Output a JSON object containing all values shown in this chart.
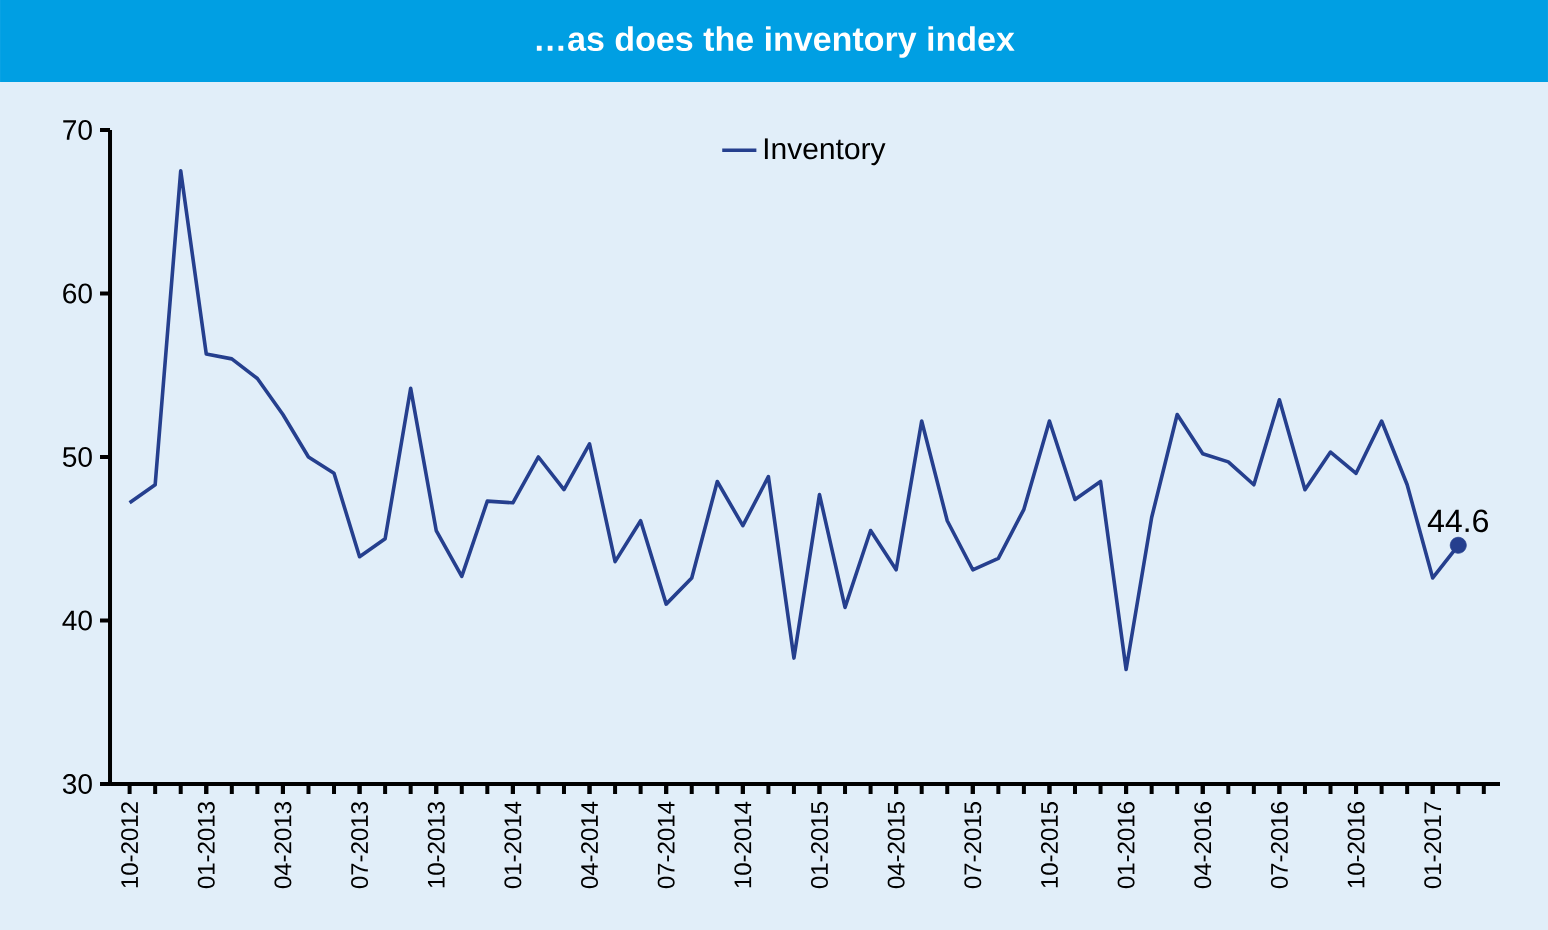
{
  "chart_data": {
    "type": "line",
    "title": "…as does the inventory index",
    "x": [
      "2012-10",
      "2012-11",
      "2012-12",
      "2013-01",
      "2013-02",
      "2013-03",
      "2013-04",
      "2013-05",
      "2013-06",
      "2013-07",
      "2013-08",
      "2013-09",
      "2013-10",
      "2013-11",
      "2013-12",
      "2014-01",
      "2014-02",
      "2014-03",
      "2014-04",
      "2014-05",
      "2014-06",
      "2014-07",
      "2014-08",
      "2014-09",
      "2014-10",
      "2014-11",
      "2014-12",
      "2015-01",
      "2015-02",
      "2015-03",
      "2015-04",
      "2015-05",
      "2015-06",
      "2015-07",
      "2015-08",
      "2015-09",
      "2015-10",
      "2015-11",
      "2015-12",
      "2016-01",
      "2016-02",
      "2016-03",
      "2016-04",
      "2016-05",
      "2016-06",
      "2016-07",
      "2016-08",
      "2016-09",
      "2016-10",
      "2016-11",
      "2016-12",
      "2017-01",
      "2017-02"
    ],
    "series": [
      {
        "name": "Inventory",
        "color": "#253f8e",
        "values": [
          47.2,
          48.3,
          67.5,
          56.3,
          56.0,
          54.8,
          52.6,
          50.0,
          49.0,
          43.9,
          45.0,
          54.2,
          45.5,
          42.7,
          47.3,
          47.2,
          50.0,
          48.0,
          50.8,
          43.6,
          46.1,
          41.0,
          42.6,
          48.5,
          45.8,
          48.8,
          37.7,
          47.7,
          40.8,
          45.5,
          43.1,
          52.2,
          46.1,
          43.1,
          43.8,
          46.8,
          52.2,
          47.4,
          48.5,
          37.0,
          46.3,
          52.6,
          50.2,
          49.7,
          48.3,
          53.5,
          48.0,
          50.3,
          49.0,
          52.2,
          48.3,
          42.6,
          44.6
        ],
        "value_labels": [
          null,
          null,
          null,
          null,
          null,
          null,
          null,
          null,
          null,
          null,
          null,
          null,
          null,
          null,
          null,
          null,
          null,
          null,
          null,
          null,
          null,
          null,
          null,
          null,
          null,
          null,
          null,
          null,
          null,
          null,
          null,
          null,
          null,
          null,
          null,
          null,
          null,
          null,
          null,
          null,
          null,
          null,
          null,
          null,
          null,
          null,
          null,
          null,
          null,
          null,
          null,
          null,
          "44.6"
        ]
      }
    ],
    "xlim": [
      "2012-09-08",
      "2017-03-20"
    ],
    "xticks": [
      {
        "value": "2012-10",
        "label": "10-2012"
      },
      {
        "value": "2013-01",
        "label": "01-2013"
      },
      {
        "value": "2013-04",
        "label": "04-2013"
      },
      {
        "value": "2013-07",
        "label": "07-2013"
      },
      {
        "value": "2013-10",
        "label": "10-2013"
      },
      {
        "value": "2014-01",
        "label": "01-2014"
      },
      {
        "value": "2014-04",
        "label": "04-2014"
      },
      {
        "value": "2014-07",
        "label": "07-2014"
      },
      {
        "value": "2014-10",
        "label": "10-2014"
      },
      {
        "value": "2015-01",
        "label": "01-2015"
      },
      {
        "value": "2015-04",
        "label": "04-2015"
      },
      {
        "value": "2015-07",
        "label": "07-2015"
      },
      {
        "value": "2015-10",
        "label": "10-2015"
      },
      {
        "value": "2016-01",
        "label": "01-2016"
      },
      {
        "value": "2016-04",
        "label": "04-2016"
      },
      {
        "value": "2016-07",
        "label": "07-2016"
      },
      {
        "value": "2016-10",
        "label": "10-2016"
      },
      {
        "value": "2017-01",
        "label": "01-2017"
      }
    ],
    "ylim": [
      30,
      70
    ],
    "yticks": [
      30,
      40,
      50,
      60,
      70
    ],
    "legend": "top",
    "grid": false,
    "marker": "none",
    "line_style": "solid"
  }
}
